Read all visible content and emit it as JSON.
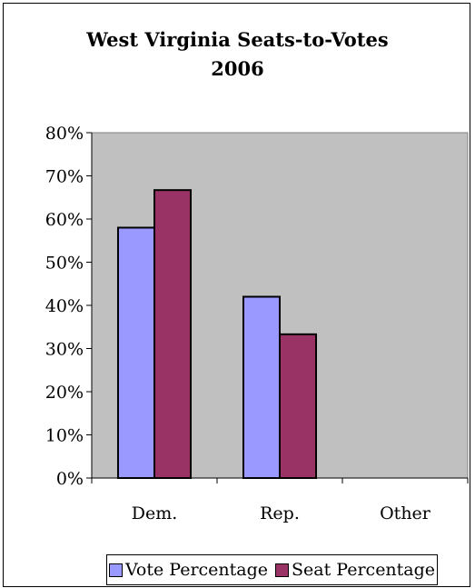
{
  "chart_data": {
    "type": "bar",
    "title_lines": [
      "West Virginia Seats-to-Votes",
      "2006"
    ],
    "categories": [
      "Dem.",
      "Rep.",
      "Other"
    ],
    "series": [
      {
        "name": "Vote Percentage",
        "color": "#9999ff",
        "values": [
          0.58,
          0.42,
          0.0
        ]
      },
      {
        "name": "Seat Percentage",
        "color": "#993366",
        "values": [
          0.667,
          0.333,
          0.0
        ]
      }
    ],
    "y_ticks": [
      "0%",
      "10%",
      "20%",
      "30%",
      "40%",
      "50%",
      "60%",
      "70%",
      "80%"
    ],
    "ylim": [
      0,
      0.8
    ],
    "grid": false,
    "plot_background": "#c0c0c0",
    "legend_position": "bottom"
  }
}
